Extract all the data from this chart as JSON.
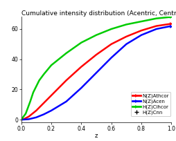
{
  "title": "Cumulative intensity distribution (Acentric, Centric",
  "xlabel": "z",
  "xlim": [
    0,
    1
  ],
  "ylim": [
    -2,
    68
  ],
  "yticks": [
    0,
    20,
    40,
    60
  ],
  "xticks": [
    0,
    0.2,
    0.4,
    0.6,
    0.8,
    1.0
  ],
  "legend_labels": [
    "N(Z)Athcor",
    "N(Z)Acen",
    "H(Z)Cihcor",
    "H(Z)Cnn"
  ],
  "bg_color": "#ffffff",
  "plot_bg_color": "#ffffff",
  "line_red": [
    [
      0,
      0
    ],
    [
      0.02,
      0.5
    ],
    [
      0.05,
      2
    ],
    [
      0.1,
      6
    ],
    [
      0.15,
      11
    ],
    [
      0.2,
      16
    ],
    [
      0.3,
      26
    ],
    [
      0.4,
      35
    ],
    [
      0.5,
      43
    ],
    [
      0.6,
      50
    ],
    [
      0.7,
      55
    ],
    [
      0.8,
      59
    ],
    [
      0.9,
      62
    ],
    [
      1.0,
      63.5
    ]
  ],
  "line_blue": [
    [
      0,
      0
    ],
    [
      0.02,
      0.1
    ],
    [
      0.05,
      0.3
    ],
    [
      0.1,
      1.5
    ],
    [
      0.15,
      3.5
    ],
    [
      0.2,
      6
    ],
    [
      0.3,
      12
    ],
    [
      0.4,
      21
    ],
    [
      0.5,
      31
    ],
    [
      0.6,
      41
    ],
    [
      0.7,
      50
    ],
    [
      0.8,
      56
    ],
    [
      0.9,
      60
    ],
    [
      1.0,
      62
    ]
  ],
  "line_green": [
    [
      0,
      0
    ],
    [
      0.03,
      4
    ],
    [
      0.06,
      12
    ],
    [
      0.08,
      18
    ],
    [
      0.1,
      22
    ],
    [
      0.12,
      26
    ],
    [
      0.15,
      30
    ],
    [
      0.2,
      36
    ],
    [
      0.3,
      44
    ],
    [
      0.4,
      51
    ],
    [
      0.5,
      56
    ],
    [
      0.6,
      60
    ],
    [
      0.7,
      63
    ],
    [
      0.8,
      65
    ],
    [
      0.9,
      67
    ],
    [
      1.0,
      68
    ]
  ],
  "title_fontsize": 6.5,
  "tick_fontsize": 5.5,
  "legend_fontsize": 5.0,
  "axis_label_fontsize": 6
}
